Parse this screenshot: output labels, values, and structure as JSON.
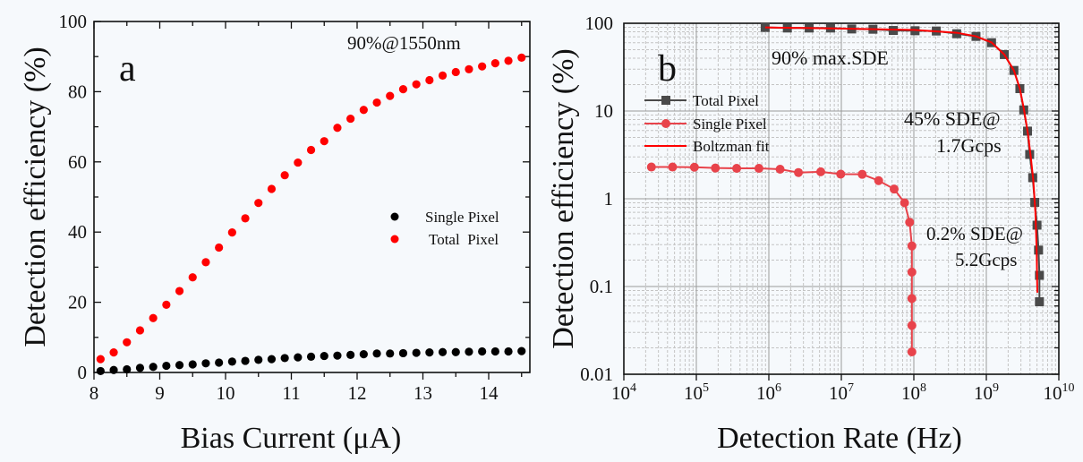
{
  "chart_data": [
    {
      "type": "scatter",
      "panel_label": "a",
      "annotation": "90%@1550nm",
      "xlabel": "Bias Current (μA)",
      "ylabel": "Detection efficiency (%)",
      "xlim": [
        8,
        14.63
      ],
      "ylim": [
        0,
        100
      ],
      "xticks": [
        "8",
        "9",
        "10",
        "11",
        "12",
        "13",
        "14"
      ],
      "yticks": [
        "0",
        "20",
        "40",
        "60",
        "80",
        "100"
      ],
      "legend_position": "center-right",
      "x": [
        8.1,
        8.3,
        8.5,
        8.7,
        8.9,
        9.1,
        9.3,
        9.5,
        9.7,
        9.9,
        10.1,
        10.3,
        10.5,
        10.7,
        10.9,
        11.1,
        11.3,
        11.5,
        11.7,
        11.9,
        12.1,
        12.3,
        12.5,
        12.7,
        12.9,
        13.1,
        13.3,
        13.5,
        13.7,
        13.9,
        14.1,
        14.3,
        14.5
      ],
      "series": [
        {
          "name": "Single Pixel",
          "color": "#000000",
          "values": [
            0.4,
            0.7,
            0.9,
            1.3,
            1.6,
            1.9,
            2.1,
            2.3,
            2.6,
            2.8,
            3.1,
            3.3,
            3.6,
            3.8,
            4.1,
            4.3,
            4.5,
            4.7,
            4.8,
            5.0,
            5.2,
            5.4,
            5.4,
            5.5,
            5.6,
            5.7,
            5.8,
            5.8,
            5.9,
            6.0,
            6.0,
            6.0,
            6.1
          ]
        },
        {
          "name": "Total  Pixel",
          "color": "#ff0000",
          "values": [
            3.8,
            5.7,
            8.6,
            12.0,
            15.5,
            19.3,
            23.2,
            27.1,
            31.4,
            35.6,
            39.9,
            43.9,
            48.3,
            52.3,
            56.2,
            59.8,
            63.4,
            65.9,
            69.7,
            72.3,
            74.8,
            76.9,
            78.8,
            80.7,
            82.1,
            83.3,
            84.6,
            85.6,
            86.4,
            87.2,
            88.1,
            88.8,
            89.7
          ]
        }
      ]
    },
    {
      "type": "line",
      "panel_label": "b",
      "xlabel": "Detection Rate (Hz)",
      "ylabel": "Detection efficiency (%)",
      "xscale": "log",
      "yscale": "log",
      "xlim": [
        10000.0,
        10000000000.0
      ],
      "ylim": [
        0.01,
        100
      ],
      "grid": true,
      "xticks": [
        {
          "base": "10",
          "exp": "4"
        },
        {
          "base": "10",
          "exp": "5"
        },
        {
          "base": "10",
          "exp": "6"
        },
        {
          "base": "10",
          "exp": "7"
        },
        {
          "base": "10",
          "exp": "8"
        },
        {
          "base": "10",
          "exp": "9"
        },
        {
          "base": "10",
          "exp": "10"
        }
      ],
      "yticks": [
        "100",
        "10",
        "1",
        "0.1",
        "0.01"
      ],
      "legend_position": "upper-left",
      "annotations": [
        "90% max.SDE",
        "45% SDE@",
        "1.7Gcps",
        "0.2% SDE@",
        "5.2Gcps"
      ],
      "series": [
        {
          "name": "Total Pixel",
          "color": "#4a4a4a",
          "marker": "square",
          "x": [
            890000.0,
            1800000.0,
            3600000.0,
            7100000.0,
            13900000.0,
            27300000.0,
            52000000.0,
            104000000.0,
            204000000.0,
            390000000.0,
            720000000.0,
            1180000000.0,
            1770000000.0,
            2400000000.0,
            2900000000.0,
            3280000000.0,
            3700000000.0,
            3960000000.0,
            4360000000.0,
            4660000000.0,
            5000000000.0,
            5250000000.0,
            5400000000.0,
            5400000000.0
          ],
          "y": [
            89.6,
            88.3,
            88.3,
            88.3,
            86.1,
            85.5,
            82.8,
            82.2,
            81.6,
            76.0,
            70.8,
            60.1,
            44.0,
            29.0,
            18.0,
            10.3,
            5.9,
            3.2,
            1.74,
            0.91,
            0.5,
            0.26,
            0.134,
            0.067
          ]
        },
        {
          "name": "Single Pixel",
          "color": "#e8434b",
          "marker": "circle",
          "x": [
            24000.0,
            47000.0,
            94000.0,
            183000.0,
            360000.0,
            730000.0,
            1430000.0,
            2560000.0,
            5200000.0,
            9800000.0,
            19400000.0,
            32700000.0,
            53500000.0,
            74500000.0,
            87500000.0,
            94000000.0,
            94000000.0,
            94000000.0,
            94000000.0,
            94000000.0
          ],
          "y": [
            2.3,
            2.3,
            2.29,
            2.24,
            2.22,
            2.22,
            2.17,
            1.99,
            2.03,
            1.91,
            1.9,
            1.61,
            1.29,
            0.9,
            0.54,
            0.29,
            0.146,
            0.073,
            0.036,
            0.018
          ]
        },
        {
          "name": "Boltzman fit",
          "color": "#ff0000",
          "marker": "none",
          "x": [
            890000.0,
            10000000.0,
            100000000.0,
            390000000.0,
            720000000.0,
            1180000000.0,
            1770000000.0,
            2400000000.0,
            2900000000.0,
            3300000000.0,
            3750000000.0,
            4100000000.0,
            4450000000.0,
            4750000000.0,
            4950000000.0,
            5050000000.0
          ],
          "y": [
            89.6,
            87.0,
            84.0,
            78.0,
            71.0,
            60.5,
            44.0,
            29.0,
            18.0,
            10.5,
            5.5,
            3.0,
            1.6,
            0.7,
            0.25,
            0.085
          ]
        }
      ]
    }
  ]
}
